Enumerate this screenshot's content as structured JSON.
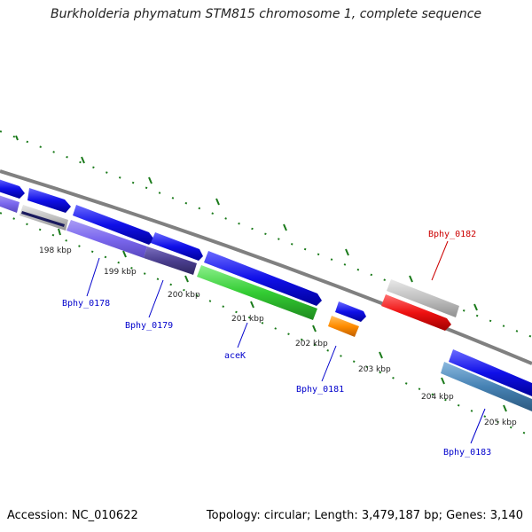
{
  "title": "Burkholderia phymatum STM815 chromosome 1, complete sequence",
  "footer": {
    "accession": "Accession: NC_010622",
    "summary": "Topology: circular; Length: 3,479,187 bp; Genes: 3,140"
  },
  "scale_labels": [
    "198 kbp",
    "199 kbp",
    "200 kbp",
    "201 kbp",
    "202 kbp",
    "203 kbp",
    "204 kbp",
    "205 kbp"
  ],
  "gene_labels": [
    {
      "text": "Bphy_0178",
      "color": "#0000cc"
    },
    {
      "text": "Bphy_0179",
      "color": "#0000cc"
    },
    {
      "text": "aceK",
      "color": "#0000cc"
    },
    {
      "text": "Bphy_0181",
      "color": "#0000cc"
    },
    {
      "text": "Bphy_0182",
      "color": "#cc0000"
    },
    {
      "text": "Bphy_0183",
      "color": "#0000cc"
    }
  ],
  "colors": {
    "backbone": "#808080",
    "tick": "#1a7a1a",
    "cds_forward": "#1010e8",
    "cds_highlight": "#ee1111",
    "gene_green": "#33cc33",
    "gene_orange": "#ff8c00",
    "gene_purple": "#7b68ee",
    "gene_darkpurple": "#4b3f8f",
    "gene_gray": "#c0c0c0",
    "gene_steelblue": "#4682b4"
  }
}
